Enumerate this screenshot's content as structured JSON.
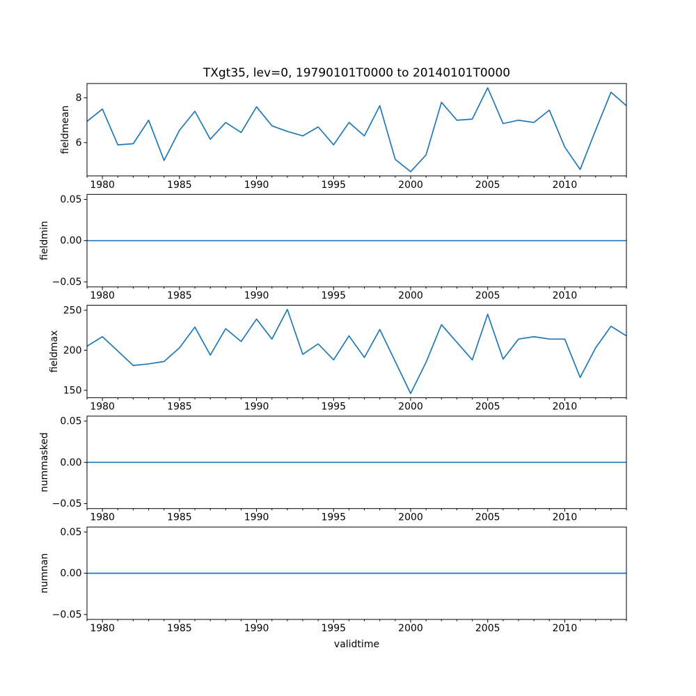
{
  "title": "TXgt35, lev=0, 19790101T0000 to 20140101T0000",
  "xlabel": "validtime",
  "colors": {
    "line": "#1f77b4",
    "axis": "#000000",
    "background": "#ffffff"
  },
  "chart_data": {
    "type": "line",
    "x": [
      1979,
      1980,
      1981,
      1982,
      1983,
      1984,
      1985,
      1986,
      1987,
      1988,
      1989,
      1990,
      1991,
      1992,
      1993,
      1994,
      1995,
      1996,
      1997,
      1998,
      1999,
      2000,
      2001,
      2002,
      2003,
      2004,
      2005,
      2006,
      2007,
      2008,
      2009,
      2010,
      2011,
      2012,
      2013,
      2014
    ],
    "xlim": [
      1979,
      2014
    ],
    "xticks": [
      1980,
      1985,
      1990,
      1995,
      2000,
      2005,
      2010
    ],
    "xtick_labels": [
      "1980",
      "1985",
      "1990",
      "1995",
      "2000",
      "2005",
      "2010"
    ],
    "legend": "none",
    "grid": false,
    "subplots": [
      {
        "name": "fieldmean",
        "ylabel": "fieldmean",
        "ylim": [
          4.51,
          8.64
        ],
        "yticks": [
          6,
          8
        ],
        "ytick_labels": [
          "6",
          "8"
        ],
        "values": [
          6.95,
          7.5,
          5.9,
          5.95,
          7.0,
          5.2,
          6.55,
          7.4,
          6.15,
          6.9,
          6.45,
          7.6,
          6.75,
          6.5,
          6.3,
          6.7,
          5.9,
          6.9,
          6.3,
          7.65,
          5.25,
          4.7,
          5.45,
          7.8,
          7.0,
          7.05,
          8.45,
          6.85,
          7.0,
          6.9,
          7.45,
          5.8,
          4.8,
          6.55,
          8.25,
          7.65
        ]
      },
      {
        "name": "fieldmin",
        "ylabel": "fieldmin",
        "ylim": [
          -0.056,
          0.056
        ],
        "yticks": [
          0.05,
          0.0,
          -0.05
        ],
        "ytick_labels": [
          "0.05",
          "0.00",
          "−0.05"
        ],
        "values": [
          0,
          0,
          0,
          0,
          0,
          0,
          0,
          0,
          0,
          0,
          0,
          0,
          0,
          0,
          0,
          0,
          0,
          0,
          0,
          0,
          0,
          0,
          0,
          0,
          0,
          0,
          0,
          0,
          0,
          0,
          0,
          0,
          0,
          0,
          0,
          0
        ]
      },
      {
        "name": "fieldmax",
        "ylabel": "fieldmax",
        "ylim": [
          140.75,
          256.25
        ],
        "yticks": [
          150,
          200,
          250
        ],
        "ytick_labels": [
          "150",
          "200",
          "250"
        ],
        "values": [
          205,
          217,
          199,
          181,
          183,
          186,
          203,
          229,
          194,
          227,
          211,
          239,
          214,
          251,
          195,
          208,
          188,
          218,
          191,
          226,
          186,
          146,
          185,
          232,
          210,
          188,
          245,
          189,
          214,
          217,
          214,
          214,
          166,
          203,
          230,
          218
        ]
      },
      {
        "name": "nummasked",
        "ylabel": "nummasked",
        "ylim": [
          -0.056,
          0.056
        ],
        "yticks": [
          0.05,
          0.0,
          -0.05
        ],
        "ytick_labels": [
          "0.05",
          "0.00",
          "−0.05"
        ],
        "values": [
          0,
          0,
          0,
          0,
          0,
          0,
          0,
          0,
          0,
          0,
          0,
          0,
          0,
          0,
          0,
          0,
          0,
          0,
          0,
          0,
          0,
          0,
          0,
          0,
          0,
          0,
          0,
          0,
          0,
          0,
          0,
          0,
          0,
          0,
          0,
          0
        ]
      },
      {
        "name": "numnan",
        "ylabel": "numnan",
        "ylim": [
          -0.056,
          0.056
        ],
        "yticks": [
          0.05,
          0.0,
          -0.05
        ],
        "ytick_labels": [
          "0.05",
          "0.00",
          "−0.05"
        ],
        "values": [
          0,
          0,
          0,
          0,
          0,
          0,
          0,
          0,
          0,
          0,
          0,
          0,
          0,
          0,
          0,
          0,
          0,
          0,
          0,
          0,
          0,
          0,
          0,
          0,
          0,
          0,
          0,
          0,
          0,
          0,
          0,
          0,
          0,
          0,
          0,
          0
        ]
      }
    ]
  }
}
